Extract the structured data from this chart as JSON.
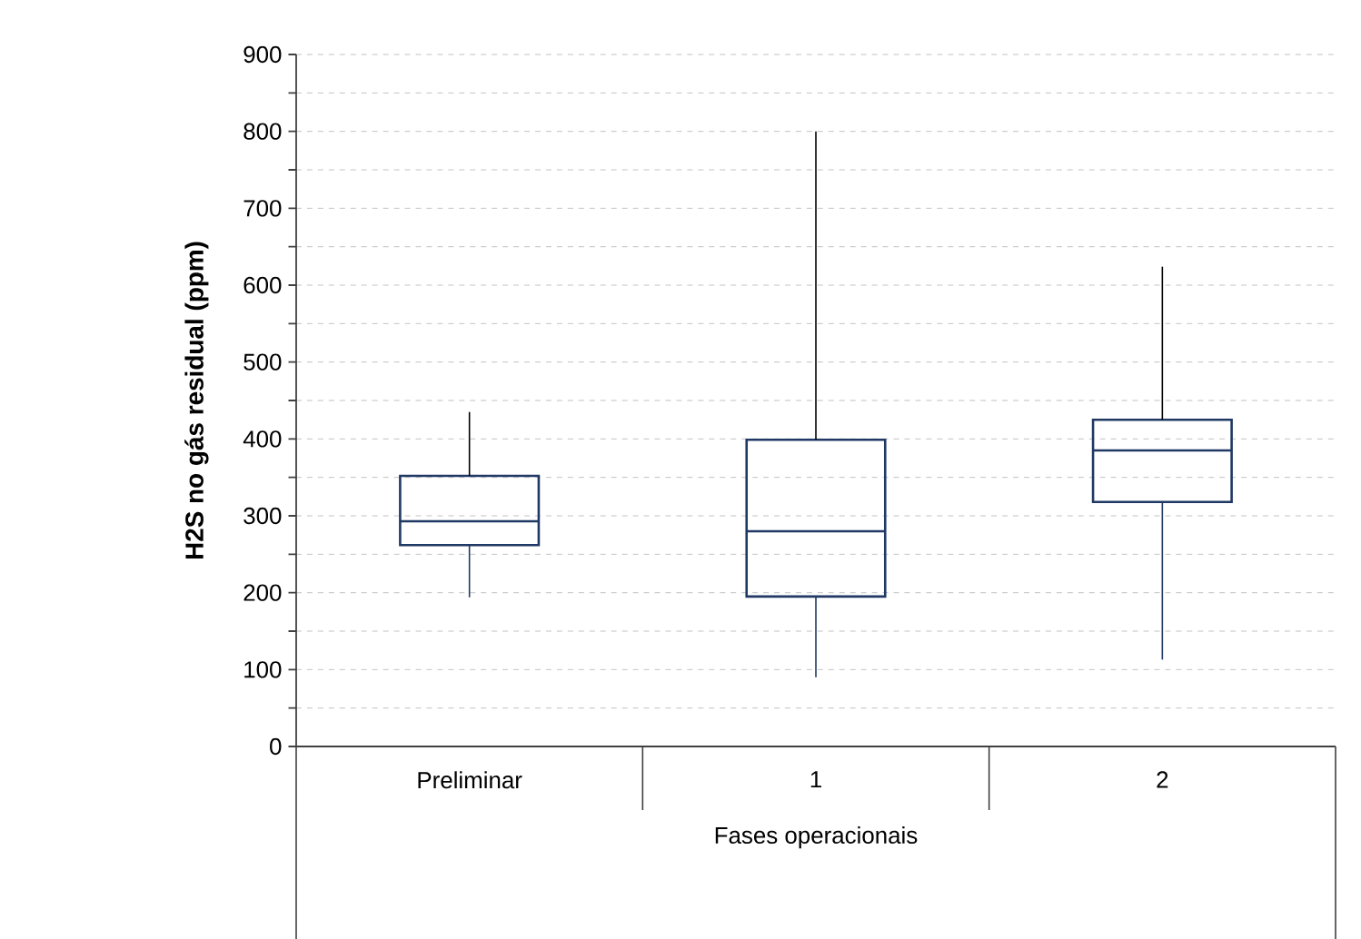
{
  "chart_data": {
    "type": "box",
    "categories": [
      "Preliminar",
      "1",
      "2"
    ],
    "xlabel": "Fases operacionais",
    "ylabel": "H2S no gás residual (ppm)",
    "ylim": [
      0,
      900
    ],
    "yticks": [
      0,
      {
        "value": 50,
        "label": null
      },
      100,
      {
        "value": 150,
        "label": null
      },
      200,
      {
        "value": 250,
        "label": null
      },
      300,
      {
        "value": 350,
        "label": null
      },
      400,
      {
        "value": 450,
        "label": null
      },
      500,
      {
        "value": 550,
        "label": null
      },
      600,
      {
        "value": 650,
        "label": null
      },
      700,
      {
        "value": 750,
        "label": null
      },
      800,
      {
        "value": 850,
        "label": null
      },
      900
    ],
    "grid": "y",
    "series": [
      {
        "color": "#203864",
        "boxes": [
          {
            "low": 194,
            "q1": 262,
            "median": 293,
            "q3": 352,
            "high": 435
          },
          {
            "low": 90,
            "q1": 195,
            "median": 280,
            "q3": 399,
            "high": 800
          },
          {
            "low": 113,
            "q1": 318,
            "median": 385,
            "q3": 425,
            "high": 624
          }
        ]
      }
    ]
  }
}
